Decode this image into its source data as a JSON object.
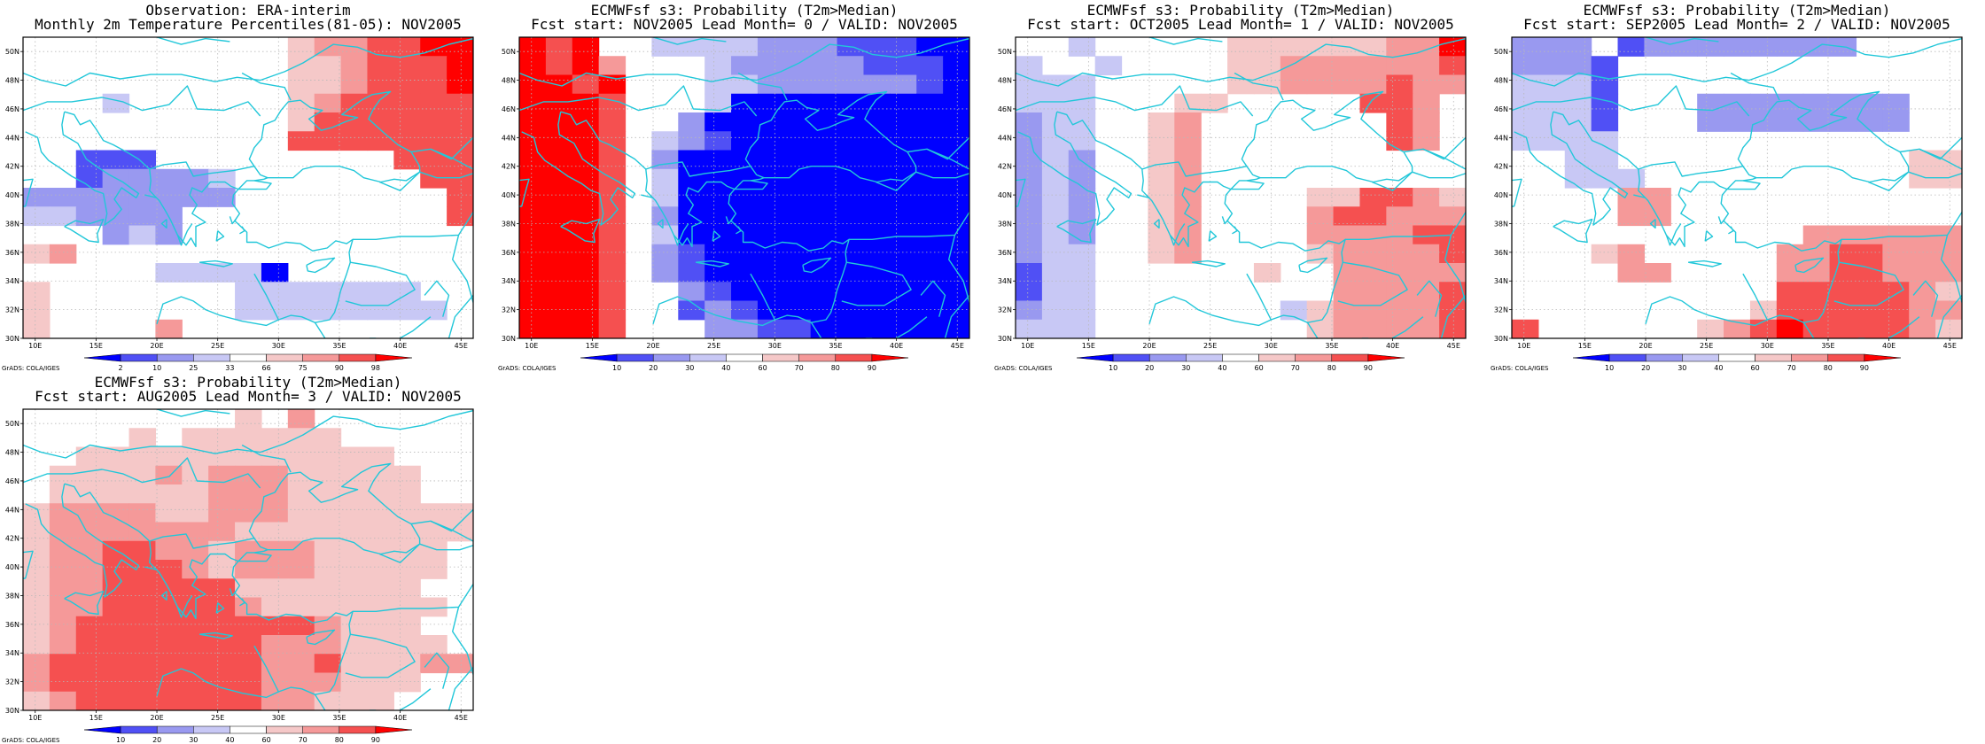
{
  "figure": {
    "panels": [
      {
        "id": "obs",
        "title_line1": "Observation: ERA-interim",
        "title_line2": "Monthly 2m Temperature Percentiles(81-05): NOV2005",
        "colorbar": {
          "labels": [
            "2",
            "10",
            "25",
            "33",
            "66",
            "75",
            "90",
            "98"
          ],
          "colors": [
            "#0000ff",
            "#5050f5",
            "#9999f0",
            "#c8c8f5",
            "#ffffff",
            "#f5c8c8",
            "#f59999",
            "#f55050",
            "#ff0000"
          ]
        },
        "grid_levels": [
          "44444444445667788",
          "44444444445567778",
          "44444444445567778",
          "44434444445677777",
          "44444444445777777",
          "44444444447777777",
          "44111444444444777",
          "44122223444444477",
          "22222222444444447",
          "33222244444444447",
          "44423244444444444",
          "56444444444444444",
          "44444333304444444",
          "54444444333333344",
          "54444444333333334",
          "54444644444444444"
        ],
        "credit": "GrADS: COLA/IGES"
      },
      {
        "id": "lead0",
        "title_line1": "ECMWFsf s3: Probability (T2m>Median)",
        "title_line2": "Fcst start: NOV2005  Lead Month= 0 / VALID: NOV2005",
        "colorbar": {
          "labels": [
            "10",
            "20",
            "30",
            "40",
            "60",
            "70",
            "80",
            "90"
          ],
          "colors": [
            "#0000ff",
            "#5050f5",
            "#9999f0",
            "#c8c8f5",
            "#ffffff",
            "#f5c8c8",
            "#f59999",
            "#f55050",
            "#ff0000"
          ]
        },
        "grid_levels": [
          "87844333322211100",
          "87864443222221110",
          "88784443322222210",
          "88874443000000000",
          "88874420000000000",
          "88874321000000000",
          "88874200000000000",
          "88874300000000000",
          "88874300000000000",
          "88874200000000000",
          "88874300000000000",
          "88874210000000000",
          "88874210000000000",
          "88874421000000000",
          "88874412100000000",
          "88874442211000000"
        ],
        "credit": "GrADS: COLA/IGES"
      },
      {
        "id": "lead1",
        "title_line1": "ECMWFsf s3: Probability (T2m>Median)",
        "title_line2": "Fcst start: OCT2005  Lead Month= 1 / VALID: NOV2005",
        "colorbar": {
          "labels": [
            "10",
            "20",
            "30",
            "40",
            "60",
            "70",
            "80",
            "90"
          ],
          "colors": [
            "#0000ff",
            "#5050f5",
            "#9999f0",
            "#c8c8f5",
            "#ffffff",
            "#f5c8c8",
            "#f59999",
            "#f55050",
            "#ff0000"
          ]
        },
        "grid_levels": [
          "44344444555555668",
          "34434444556666667",
          "33344444556666766",
          "33344455444447764",
          "23344564444444764",
          "23344564444444764",
          "23244564444444444",
          "23244564444444444",
          "23244564444557765",
          "23244564444677666",
          "23244564444666677",
          "23344564444566667",
          "13344444454466666",
          "13344444444466667",
          "23344444443566667",
          "33344444444566667"
        ],
        "credit": "GrADS: COLA/IGES"
      },
      {
        "id": "lead2",
        "title_line1": "ECMWFsf s3: Probability (T2m>Median)",
        "title_line2": "Fcst start: SEP2005  Lead Month= 2 / VALID: NOV2005",
        "colorbar": {
          "labels": [
            "10",
            "20",
            "30",
            "40",
            "60",
            "70",
            "80",
            "90"
          ],
          "colors": [
            "#0000ff",
            "#5050f5",
            "#9999f0",
            "#c8c8f5",
            "#ffffff",
            "#f5c8c8",
            "#f59999",
            "#f55050",
            "#ff0000"
          ]
        },
        "grid_levels": [
          "22241222222224444",
          "22214444444444444",
          "33314444444444444",
          "33314442222222244",
          "33314442222222244",
          "33334444444444444",
          "44334444444444455",
          "44333444444444455",
          "44446644444444444",
          "44446644444444444",
          "44444444444666666",
          "44456444446677666",
          "44446644446677666",
          "44444444447777765",
          "44444444457777766",
          "74444445678777765"
        ],
        "credit": "GrADS: COLA/IGES"
      },
      {
        "id": "lead3",
        "title_line1": "ECMWFsf s3: Probability (T2m>Median)",
        "title_line2": "Fcst start: AUG2005  Lead Month= 3 / VALID: NOV2005",
        "colorbar": {
          "labels": [
            "10",
            "20",
            "30",
            "40",
            "60",
            "70",
            "80",
            "90"
          ],
          "colors": [
            "#0000ff",
            "#5050f5",
            "#9999f0",
            "#c8c8f5",
            "#ffffff",
            "#f5c8c8",
            "#f59999",
            "#f55050",
            "#ff0000"
          ]
        },
        "grid_levels": [
          "44444444546444444",
          "44445455555544444",
          "44555555555555444",
          "45555656665555544",
          "45555556665555544",
          "56666556665555555",
          "56666666555555555",
          "56677665666555554",
          "56677765666555554",
          "56677777555555544",
          "56677777655555554",
          "56777777777655544",
          "56777777766655554",
          "67777777766755566",
          "67777777766655544",
          "56777777766555444"
        ],
        "credit": "GrADS: COLA/IGES"
      }
    ],
    "axes": {
      "lon_ticks": [
        "10E",
        "15E",
        "20E",
        "25E",
        "30E",
        "35E",
        "40E",
        "45E"
      ],
      "lat_ticks": [
        "30N",
        "32N",
        "34N",
        "36N",
        "38N",
        "40N",
        "42N",
        "44N",
        "46N",
        "48N",
        "50N"
      ],
      "lon_range": [
        9,
        46
      ],
      "lat_range": [
        30,
        51
      ]
    },
    "colors": {
      "coastline": "#22c7d9",
      "gridline": "#b8b8b8",
      "frame": "#000000"
    }
  }
}
